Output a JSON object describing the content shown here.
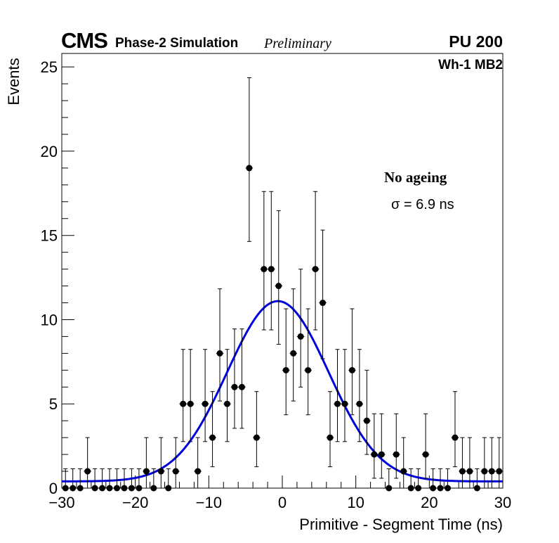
{
  "header": {
    "experiment": "CMS",
    "subtitle": "Phase-2 Simulation",
    "status": "Preliminary",
    "pileup": "PU 200"
  },
  "chart_data": {
    "type": "scatter",
    "title": "",
    "region_label": "Wh-1 MB2",
    "condition_label": "No ageing",
    "fit_label": "σ = 6.9 ns",
    "xlabel": "Primitive - Segment Time (ns)",
    "ylabel": "Events",
    "xlim": [
      -30,
      30
    ],
    "ylim": [
      0,
      25.8
    ],
    "x_ticks": [
      -30,
      -20,
      -10,
      0,
      10,
      20,
      30
    ],
    "x_tick_labels": [
      "−30",
      "−20",
      "−10",
      "0",
      "10",
      "20",
      "30"
    ],
    "y_ticks": [
      0,
      5,
      10,
      15,
      20,
      25
    ],
    "y_tick_labels": [
      "0",
      "5",
      "10",
      "15",
      "20",
      "25"
    ],
    "series": [
      {
        "name": "Data",
        "marker": "circle",
        "color": "#000000",
        "bin_width": 1,
        "x": [
          -30,
          -29,
          -28,
          -27,
          -26,
          -25,
          -24,
          -23,
          -22,
          -21,
          -20,
          -19,
          -18,
          -17,
          -16,
          -15,
          -14,
          -13,
          -12,
          -11,
          -10,
          -9,
          -8,
          -7,
          -6,
          -5,
          -4,
          -3,
          -2,
          -1,
          0,
          1,
          2,
          3,
          4,
          5,
          6,
          7,
          8,
          9,
          10,
          11,
          12,
          13,
          14,
          15,
          16,
          17,
          18,
          19,
          20,
          21,
          22,
          23,
          24,
          25,
          26,
          27,
          28,
          29
        ],
        "y": [
          0,
          0,
          0,
          1,
          0,
          0,
          0,
          0,
          0,
          0,
          0,
          1,
          0,
          1,
          0,
          1,
          5,
          5,
          1,
          5,
          3,
          8,
          5,
          6,
          6,
          19,
          3,
          13,
          13,
          12,
          7,
          8,
          9,
          7,
          13,
          11,
          3,
          5,
          5,
          7,
          5,
          4,
          2,
          2,
          0,
          2,
          1,
          0,
          0,
          2,
          0,
          0,
          0,
          3,
          1,
          1,
          0,
          1,
          1,
          1
        ]
      },
      {
        "name": "Gaussian fit",
        "type": "line",
        "color": "#0000dd",
        "amplitude": 10.7,
        "mean": -0.6,
        "sigma": 6.9,
        "baseline": 0.4
      }
    ]
  }
}
